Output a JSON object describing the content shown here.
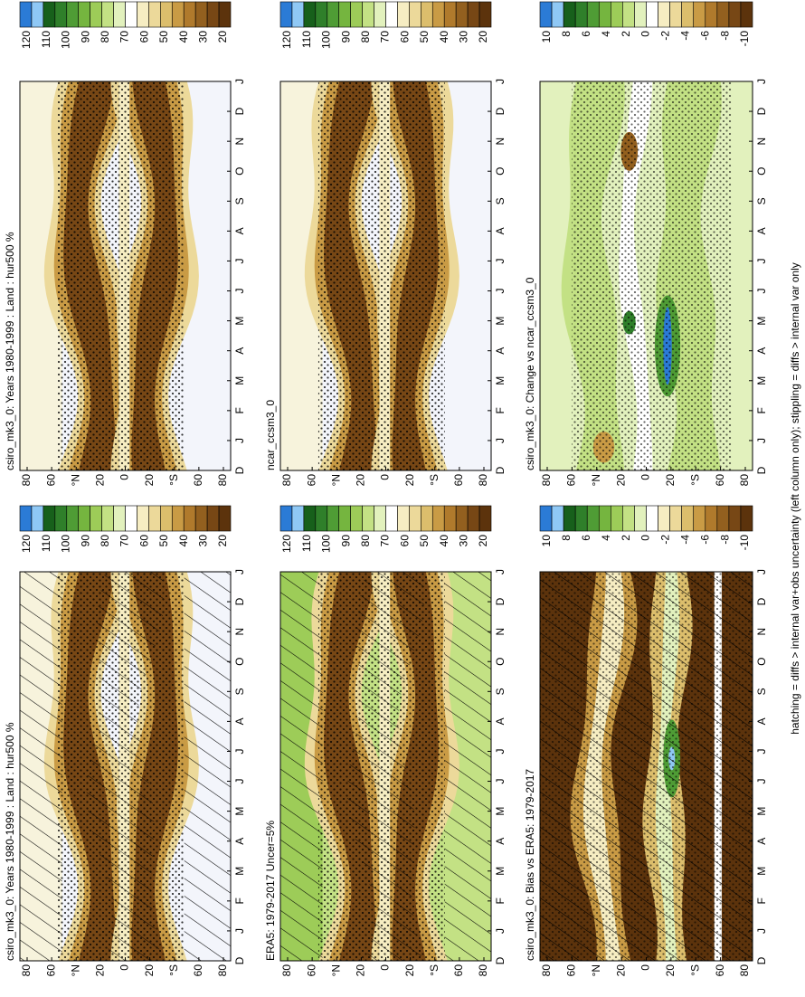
{
  "panels": [
    {
      "title": "csiro_mk3_0: Years 1980-1999 : Land : hur500 %",
      "colorbar_labels": [
        120,
        110,
        100,
        90,
        80,
        70,
        60,
        50,
        40,
        30,
        20
      ]
    },
    {
      "title": "ERA5: 1979-2017 Uncer=5%",
      "colorbar_labels": [
        120,
        110,
        100,
        90,
        80,
        70,
        60,
        50,
        40,
        30,
        20
      ]
    },
    {
      "title": "csiro_mk3_0: Bias vs ERA5: 1979-2017",
      "colorbar_labels": [
        10,
        8,
        6,
        4,
        2,
        0,
        -2,
        -4,
        -6,
        -8,
        -10
      ]
    },
    {
      "title": "csiro_mk3_0: Years 1980-1999 : Land : hur500 %",
      "colorbar_labels": [
        120,
        110,
        100,
        90,
        80,
        70,
        60,
        50,
        40,
        30,
        20
      ]
    },
    {
      "title": "ncar_ccsm3_0",
      "colorbar_labels": [
        120,
        110,
        100,
        90,
        80,
        70,
        60,
        50,
        40,
        30,
        20
      ]
    },
    {
      "title": "csiro_mk3_0: Change vs ncar_ccsm3_0",
      "colorbar_labels": [
        10,
        8,
        6,
        4,
        2,
        0,
        -2,
        -4,
        -6,
        -8,
        -10
      ]
    }
  ],
  "lat_labels": [
    "80",
    "60",
    "°N",
    "20",
    "0",
    "20",
    "°S",
    "60",
    "80"
  ],
  "month_labels": [
    "D",
    "J",
    "F",
    "M",
    "A",
    "M",
    "J",
    "J",
    "A",
    "S",
    "O",
    "N",
    "D",
    "J"
  ],
  "colorbar_colors": [
    "#2b7bd6",
    "#8fc8f5",
    "#17601b",
    "#2f7f2a",
    "#4f9c35",
    "#75b53f",
    "#9dcc58",
    "#c3e184",
    "#e2f1bd",
    "#ffffff",
    "#f6edc2",
    "#ecd99a",
    "#dcbe6c",
    "#c99b45",
    "#b07a2c",
    "#93601f",
    "#774715",
    "#5c330c"
  ],
  "caption": "hatching = diffs > internal var+obs uncertainty (left column only); stippling = diffs > internal var only"
}
